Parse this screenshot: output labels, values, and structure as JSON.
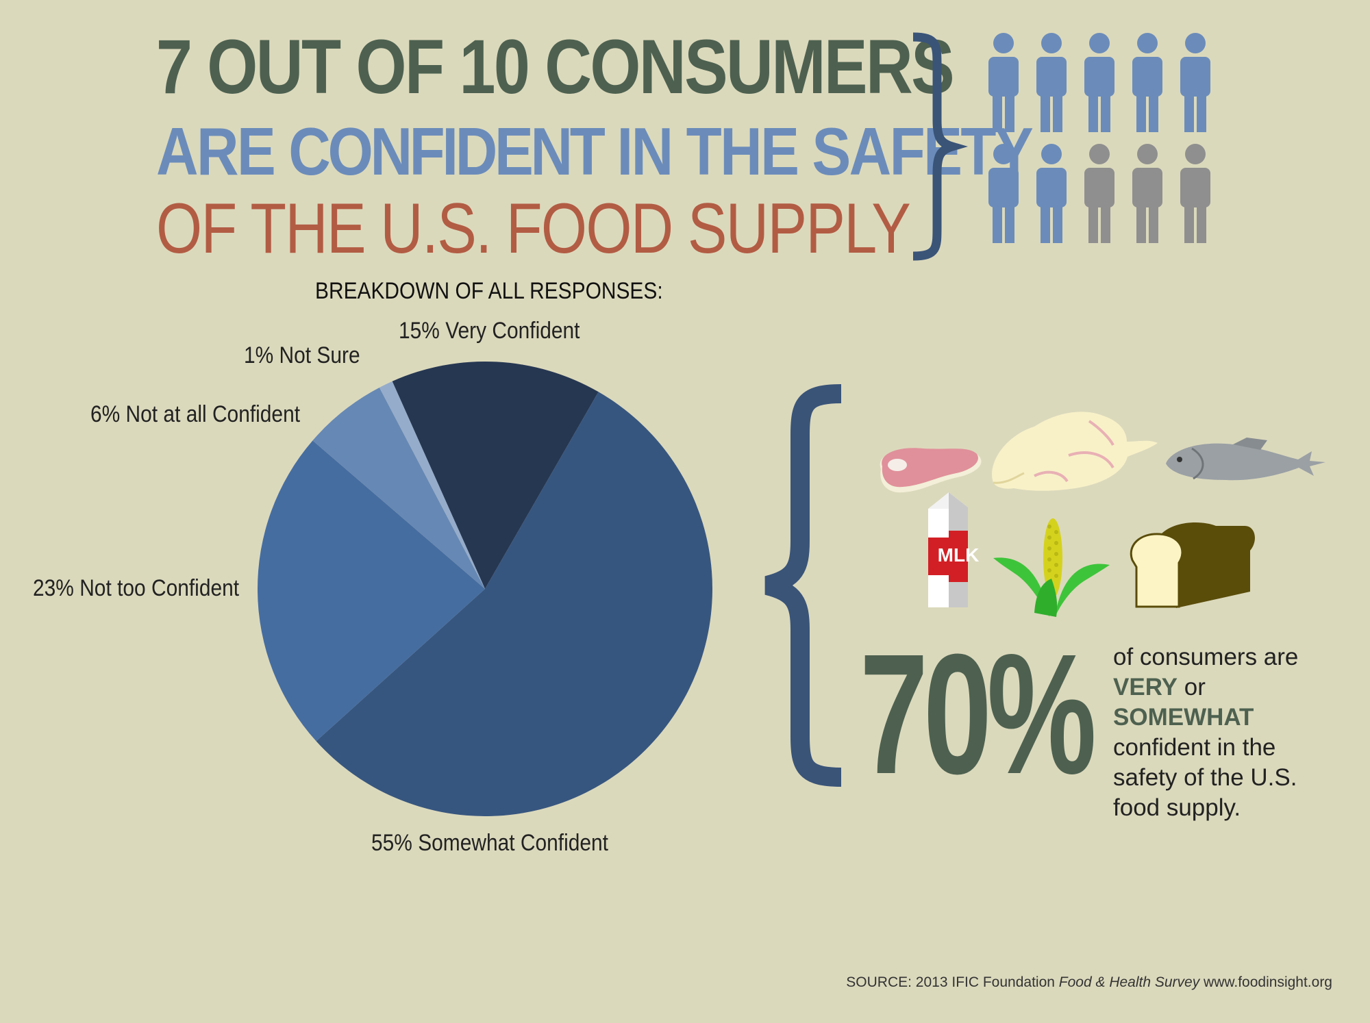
{
  "title": {
    "line1": "7 OUT OF 10 CONSUMERS",
    "line2_part1": "ARE ",
    "line2_part2": "CONFIDENT",
    "line2_part3": " IN THE SAFETY",
    "line3": "OF THE U.S. FOOD SUPPLY"
  },
  "people": {
    "total": 10,
    "highlighted": 7
  },
  "chart_data": {
    "type": "pie",
    "title": "BREAKDOWN OF ALL RESPONSES:",
    "slices": [
      {
        "label": "Very Confident",
        "value": 15,
        "display": "15% Very Confident",
        "color": "#263752"
      },
      {
        "label": "Somewhat Confident",
        "value": 55,
        "display": "55% Somewhat Confident",
        "color": "#37567f"
      },
      {
        "label": "Not too Confident",
        "value": 23,
        "display": "23% Not too Confident",
        "color": "#466da0"
      },
      {
        "label": "Not at all Confident",
        "value": 6,
        "display": "6% Not at all Confident",
        "color": "#6688b4"
      },
      {
        "label": "Not Sure",
        "value": 1,
        "display": "1% Not Sure",
        "color": "#96accb"
      }
    ]
  },
  "highlight": {
    "percent": "70%",
    "desc_part1": "of consumers are ",
    "desc_very": "VERY",
    "desc_part2": " or ",
    "desc_somewhat": "SOMEWHAT",
    "desc_part3": " confident in the safety of the U.S. food supply."
  },
  "food_icons": [
    "meat-icon",
    "chicken-icon",
    "fish-icon",
    "milk-carton-icon",
    "corn-icon",
    "bread-icon"
  ],
  "milk_label": "MLK",
  "source": {
    "prefix": "SOURCE: 2013 IFIC Foundation ",
    "survey": "Food & Health Survey",
    "suffix": " www.foodinsight.org"
  },
  "colors": {
    "dark_green": "#4e6150",
    "blue": "#6b8cba",
    "rust": "#b25c44",
    "brace": "#3a5478",
    "person_blue": "#6b8cba",
    "person_gray": "#8f8f8f"
  }
}
